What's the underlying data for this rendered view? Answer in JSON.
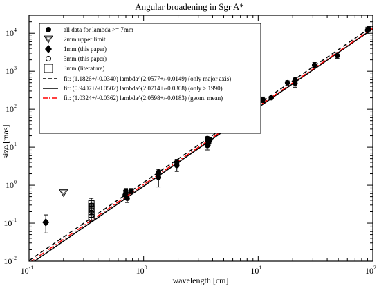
{
  "chart_data": {
    "type": "scatter",
    "title": "Angular broadening in Sgr A*",
    "xlabel": "wavelength [cm]",
    "ylabel": "size [mas]",
    "x_scale": "log",
    "y_scale": "log",
    "xlim": [
      0.1,
      100
    ],
    "ylim": [
      0.01,
      30000
    ],
    "grid": false,
    "legend_position": "top-left",
    "x_ticks": [
      {
        "value": 0.1,
        "base": "10",
        "exp": "-1"
      },
      {
        "value": 1,
        "base": "10",
        "exp": "0"
      },
      {
        "value": 10,
        "base": "10",
        "exp": "1"
      },
      {
        "value": 100,
        "base": "10",
        "exp": "2"
      }
    ],
    "y_ticks": [
      {
        "value": 0.01,
        "base": "10",
        "exp": "-2"
      },
      {
        "value": 0.1,
        "base": "10",
        "exp": "-1"
      },
      {
        "value": 1,
        "base": "10",
        "exp": "0"
      },
      {
        "value": 10,
        "base": "10",
        "exp": "1"
      },
      {
        "value": 100,
        "base": "10",
        "exp": "2"
      },
      {
        "value": 1000,
        "base": "10",
        "exp": "3"
      },
      {
        "value": 10000,
        "base": "10",
        "exp": "4"
      }
    ],
    "series": [
      {
        "name": "all data for lambda >= 7mm",
        "marker": "circle-filled",
        "points": [
          {
            "x": 0.69,
            "y": 0.55,
            "lo": 0.42,
            "hi": 0.72
          },
          {
            "x": 0.7,
            "y": 0.62,
            "lo": 0.5,
            "hi": 0.78
          },
          {
            "x": 0.7,
            "y": 0.7,
            "lo": 0.58,
            "hi": 0.82
          },
          {
            "x": 0.72,
            "y": 0.45,
            "lo": 0.35,
            "hi": 0.58
          },
          {
            "x": 0.78,
            "y": 0.7,
            "lo": 0.6,
            "hi": 0.82
          },
          {
            "x": 1.35,
            "y": 1.6,
            "lo": 0.9,
            "hi": 2.3
          },
          {
            "x": 1.35,
            "y": 2.2,
            "lo": 1.8,
            "hi": 2.6
          },
          {
            "x": 1.35,
            "y": 1.9,
            "lo": 1.5,
            "hi": 2.3
          },
          {
            "x": 1.95,
            "y": 3.3,
            "lo": 2.3,
            "hi": 4.3
          },
          {
            "x": 1.95,
            "y": 4.0,
            "lo": 3.5,
            "hi": 4.8
          },
          {
            "x": 3.6,
            "y": 11,
            "lo": 8.5,
            "hi": 14
          },
          {
            "x": 3.6,
            "y": 15,
            "lo": 12.5,
            "hi": 18
          },
          {
            "x": 3.6,
            "y": 17,
            "lo": 15,
            "hi": 19
          },
          {
            "x": 3.7,
            "y": 13,
            "lo": 11,
            "hi": 15
          },
          {
            "x": 3.8,
            "y": 16,
            "lo": 14,
            "hi": 18
          },
          {
            "x": 6.0,
            "y": 33,
            "lo": 24,
            "hi": 42
          },
          {
            "x": 6.0,
            "y": 47,
            "lo": 40,
            "hi": 60
          },
          {
            "x": 6.0,
            "y": 38,
            "lo": 33,
            "hi": 43
          },
          {
            "x": 11,
            "y": 180,
            "lo": 150,
            "hi": 210
          },
          {
            "x": 13,
            "y": 200,
            "lo": 185,
            "hi": 215
          },
          {
            "x": 18,
            "y": 500,
            "lo": 430,
            "hi": 560
          },
          {
            "x": 21,
            "y": 480,
            "lo": 380,
            "hi": 580
          },
          {
            "x": 21,
            "y": 600,
            "lo": 520,
            "hi": 700
          },
          {
            "x": 31,
            "y": 1450,
            "lo": 1250,
            "hi": 1700
          },
          {
            "x": 49,
            "y": 2600,
            "lo": 2200,
            "hi": 3100
          },
          {
            "x": 90,
            "y": 12000,
            "lo": 10000,
            "hi": 14500
          },
          {
            "x": 92,
            "y": 13000,
            "lo": 11500,
            "hi": 15000
          }
        ]
      },
      {
        "name": "2mm upper limit",
        "marker": "triangle-down",
        "points": [
          {
            "x": 0.2,
            "y": 0.62
          }
        ]
      },
      {
        "name": "1mm (this paper)",
        "marker": "diamond-filled",
        "points": [
          {
            "x": 0.14,
            "y": 0.105,
            "lo": 0.055,
            "hi": 0.165
          }
        ]
      },
      {
        "name": "3mm (this paper)",
        "marker": "circle-open",
        "points": [
          {
            "x": 0.35,
            "y": 0.2
          },
          {
            "x": 0.35,
            "y": 0.24
          },
          {
            "x": 0.35,
            "y": 0.3
          }
        ]
      },
      {
        "name": "3mm (literature)",
        "marker": "square-open",
        "points": [
          {
            "x": 0.35,
            "y": 0.14,
            "lo": 0.11,
            "hi": 0.17
          },
          {
            "x": 0.35,
            "y": 0.17,
            "lo": 0.14,
            "hi": 0.21
          },
          {
            "x": 0.35,
            "y": 0.2,
            "lo": 0.17,
            "hi": 0.25
          },
          {
            "x": 0.35,
            "y": 0.24,
            "lo": 0.19,
            "hi": 0.3
          },
          {
            "x": 0.35,
            "y": 0.28,
            "lo": 0.22,
            "hi": 0.36
          },
          {
            "x": 0.35,
            "y": 0.33,
            "lo": 0.25,
            "hi": 0.45
          }
        ]
      }
    ],
    "fits": [
      {
        "name": "fit: (1.1826+/-0.0340) lambda^(2.0577+/-0.0149) (only major axis)",
        "a": 1.1826,
        "b": 2.0577,
        "style": "dashed",
        "color": "#000000"
      },
      {
        "name": "fit: (0.9407+/-0.0502) lambda^(2.0714+/-0.0308) (only > 1990)",
        "a": 0.9407,
        "b": 2.0714,
        "style": "solid",
        "color": "#000000"
      },
      {
        "name": "fit: (1.0324+/-0.0362) lambda^(2.0598+/-0.0183) (geom. mean)",
        "a": 1.0324,
        "b": 2.0598,
        "style": "dashdot",
        "color": "#ff0000"
      }
    ]
  }
}
